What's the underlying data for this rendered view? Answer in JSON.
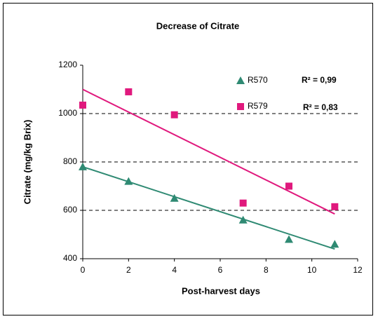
{
  "chart_data": {
    "type": "scatter",
    "title": "Decrease of Citrate",
    "x_label": "Post-harvest days",
    "y_label": "Citrate (mg/kg Brix)",
    "xlim": [
      0,
      12
    ],
    "xticks": [
      0,
      2,
      4,
      6,
      8,
      10,
      12
    ],
    "ylim": [
      400,
      1200
    ],
    "yticks": [
      400,
      600,
      800,
      1000,
      1200
    ],
    "grid": true,
    "legend": "upper right",
    "series": [
      {
        "name": "R570",
        "color": "#2f8a73",
        "marker": "triangle",
        "x": [
          0,
          2,
          4,
          7,
          9,
          11
        ],
        "values": [
          780,
          720,
          650,
          560,
          480,
          460
        ],
        "trend_x": [
          0,
          11
        ],
        "trend_values": [
          780,
          440
        ],
        "r2_label": "R² = 0,99"
      },
      {
        "name": "R579",
        "color": "#e0197d",
        "marker": "square",
        "x": [
          0,
          2,
          4,
          7,
          9,
          11
        ],
        "values": [
          1035,
          1090,
          995,
          630,
          700,
          615
        ],
        "trend_x": [
          0,
          11
        ],
        "trend_values": [
          1100,
          585
        ],
        "r2_label": "R² = 0,83"
      }
    ]
  }
}
